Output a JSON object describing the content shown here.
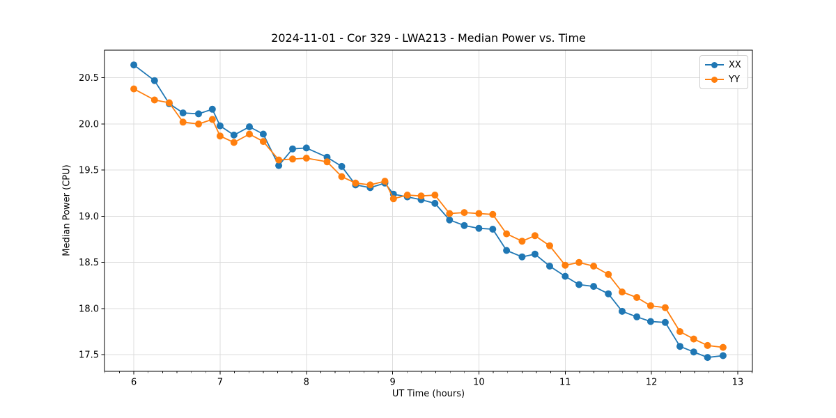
{
  "chart_data": {
    "type": "line",
    "title": "2024-11-01 - Cor 329 - LWA213 - Median Power vs. Time",
    "xlabel": "UT Time (hours)",
    "ylabel": "Median Power (CPU)",
    "legend_position": "upper right",
    "grid": true,
    "xlim": [
      5.66,
      13.17
    ],
    "ylim": [
      17.32,
      20.8
    ],
    "xticks": [
      6,
      7,
      8,
      9,
      10,
      11,
      12,
      13
    ],
    "xtick_labels": [
      "6",
      "7",
      "8",
      "9",
      "10",
      "11",
      "12",
      "13"
    ],
    "yticks": [
      17.5,
      18.0,
      18.5,
      19.0,
      19.5,
      20.0,
      20.5
    ],
    "ytick_labels": [
      "17.5",
      "18.0",
      "18.5",
      "19.0",
      "19.5",
      "20.0",
      "20.5"
    ],
    "x_minor_step": 0.1666667,
    "x": [
      6.0,
      6.24,
      6.41,
      6.57,
      6.75,
      6.91,
      7.0,
      7.16,
      7.34,
      7.5,
      7.68,
      7.84,
      8.0,
      8.24,
      8.41,
      8.57,
      8.74,
      8.91,
      9.01,
      9.17,
      9.33,
      9.49,
      9.66,
      9.83,
      10.0,
      10.16,
      10.32,
      10.5,
      10.65,
      10.82,
      11.0,
      11.16,
      11.33,
      11.5,
      11.66,
      11.83,
      11.99,
      12.16,
      12.33,
      12.49,
      12.65,
      12.83
    ],
    "series": [
      {
        "name": "XX",
        "color": "#1f77b4",
        "values": [
          20.64,
          20.47,
          20.22,
          20.12,
          20.11,
          20.16,
          19.98,
          19.88,
          19.97,
          19.89,
          19.55,
          19.73,
          19.74,
          19.64,
          19.54,
          19.34,
          19.31,
          19.36,
          19.24,
          19.21,
          19.18,
          19.14,
          18.96,
          18.9,
          18.87,
          18.86,
          18.63,
          18.56,
          18.59,
          18.46,
          18.35,
          18.26,
          18.24,
          18.16,
          17.97,
          17.91,
          17.86,
          17.85,
          17.59,
          17.53,
          17.47,
          17.49
        ]
      },
      {
        "name": "YY",
        "color": "#ff7f0e",
        "values": [
          20.38,
          20.26,
          20.23,
          20.02,
          20.0,
          20.05,
          19.87,
          19.8,
          19.89,
          19.81,
          19.61,
          19.62,
          19.63,
          19.59,
          19.43,
          19.36,
          19.34,
          19.38,
          19.19,
          19.23,
          19.22,
          19.23,
          19.03,
          19.04,
          19.03,
          19.02,
          18.81,
          18.73,
          18.79,
          18.68,
          18.47,
          18.5,
          18.46,
          18.37,
          18.18,
          18.12,
          18.03,
          18.01,
          17.75,
          17.67,
          17.6,
          17.58
        ]
      }
    ]
  }
}
